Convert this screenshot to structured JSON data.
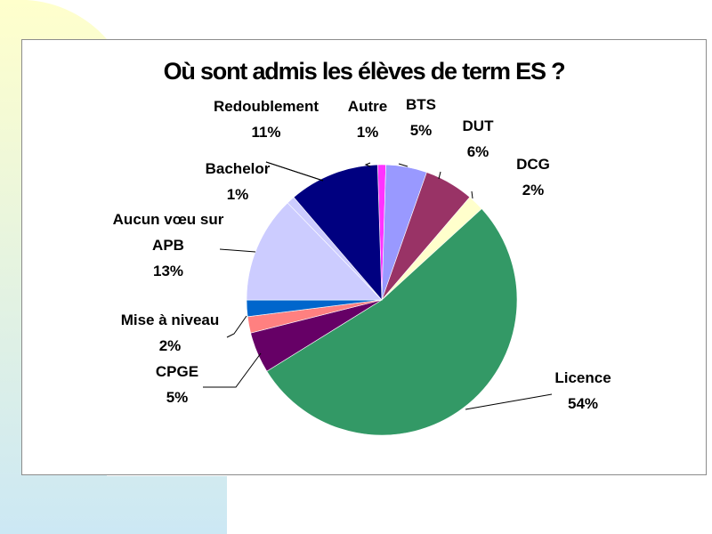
{
  "chart_data": {
    "type": "pie",
    "title": "Où sont admis les élèves de term ES ?",
    "slices": [
      {
        "label": "Autre",
        "value": 1,
        "value_label": "1%",
        "color": "#ff33ff"
      },
      {
        "label": "BTS",
        "value": 5,
        "value_label": "5%",
        "color": "#9999ff"
      },
      {
        "label": "DUT",
        "value": 6,
        "value_label": "6%",
        "color": "#993366"
      },
      {
        "label": "DCG",
        "value": 2,
        "value_label": "2%",
        "color": "#ffffcc"
      },
      {
        "label": "Licence",
        "value": 54,
        "value_label": "54%",
        "color": "#339966"
      },
      {
        "label": "CPGE",
        "value": 5,
        "value_label": "5%",
        "color": "#660066"
      },
      {
        "label": "Mise à niveau",
        "value": 2,
        "value_label": "2%",
        "color": "#ff8080"
      },
      {
        "label": "",
        "value": 2,
        "value_label": "",
        "color": "#0066cc"
      },
      {
        "label": "Aucun vœu sur APB",
        "value": 13,
        "value_label": "13%",
        "color": "#ccccff"
      },
      {
        "label": "Bachelor",
        "value": 1,
        "value_label": "1%",
        "color": "#ccccff"
      },
      {
        "label": "Redoublement",
        "value": 11,
        "value_label": "11%",
        "color": "#000080"
      }
    ]
  },
  "background": {
    "yellow": "#ffffcc",
    "blue": "#cce8f4"
  }
}
